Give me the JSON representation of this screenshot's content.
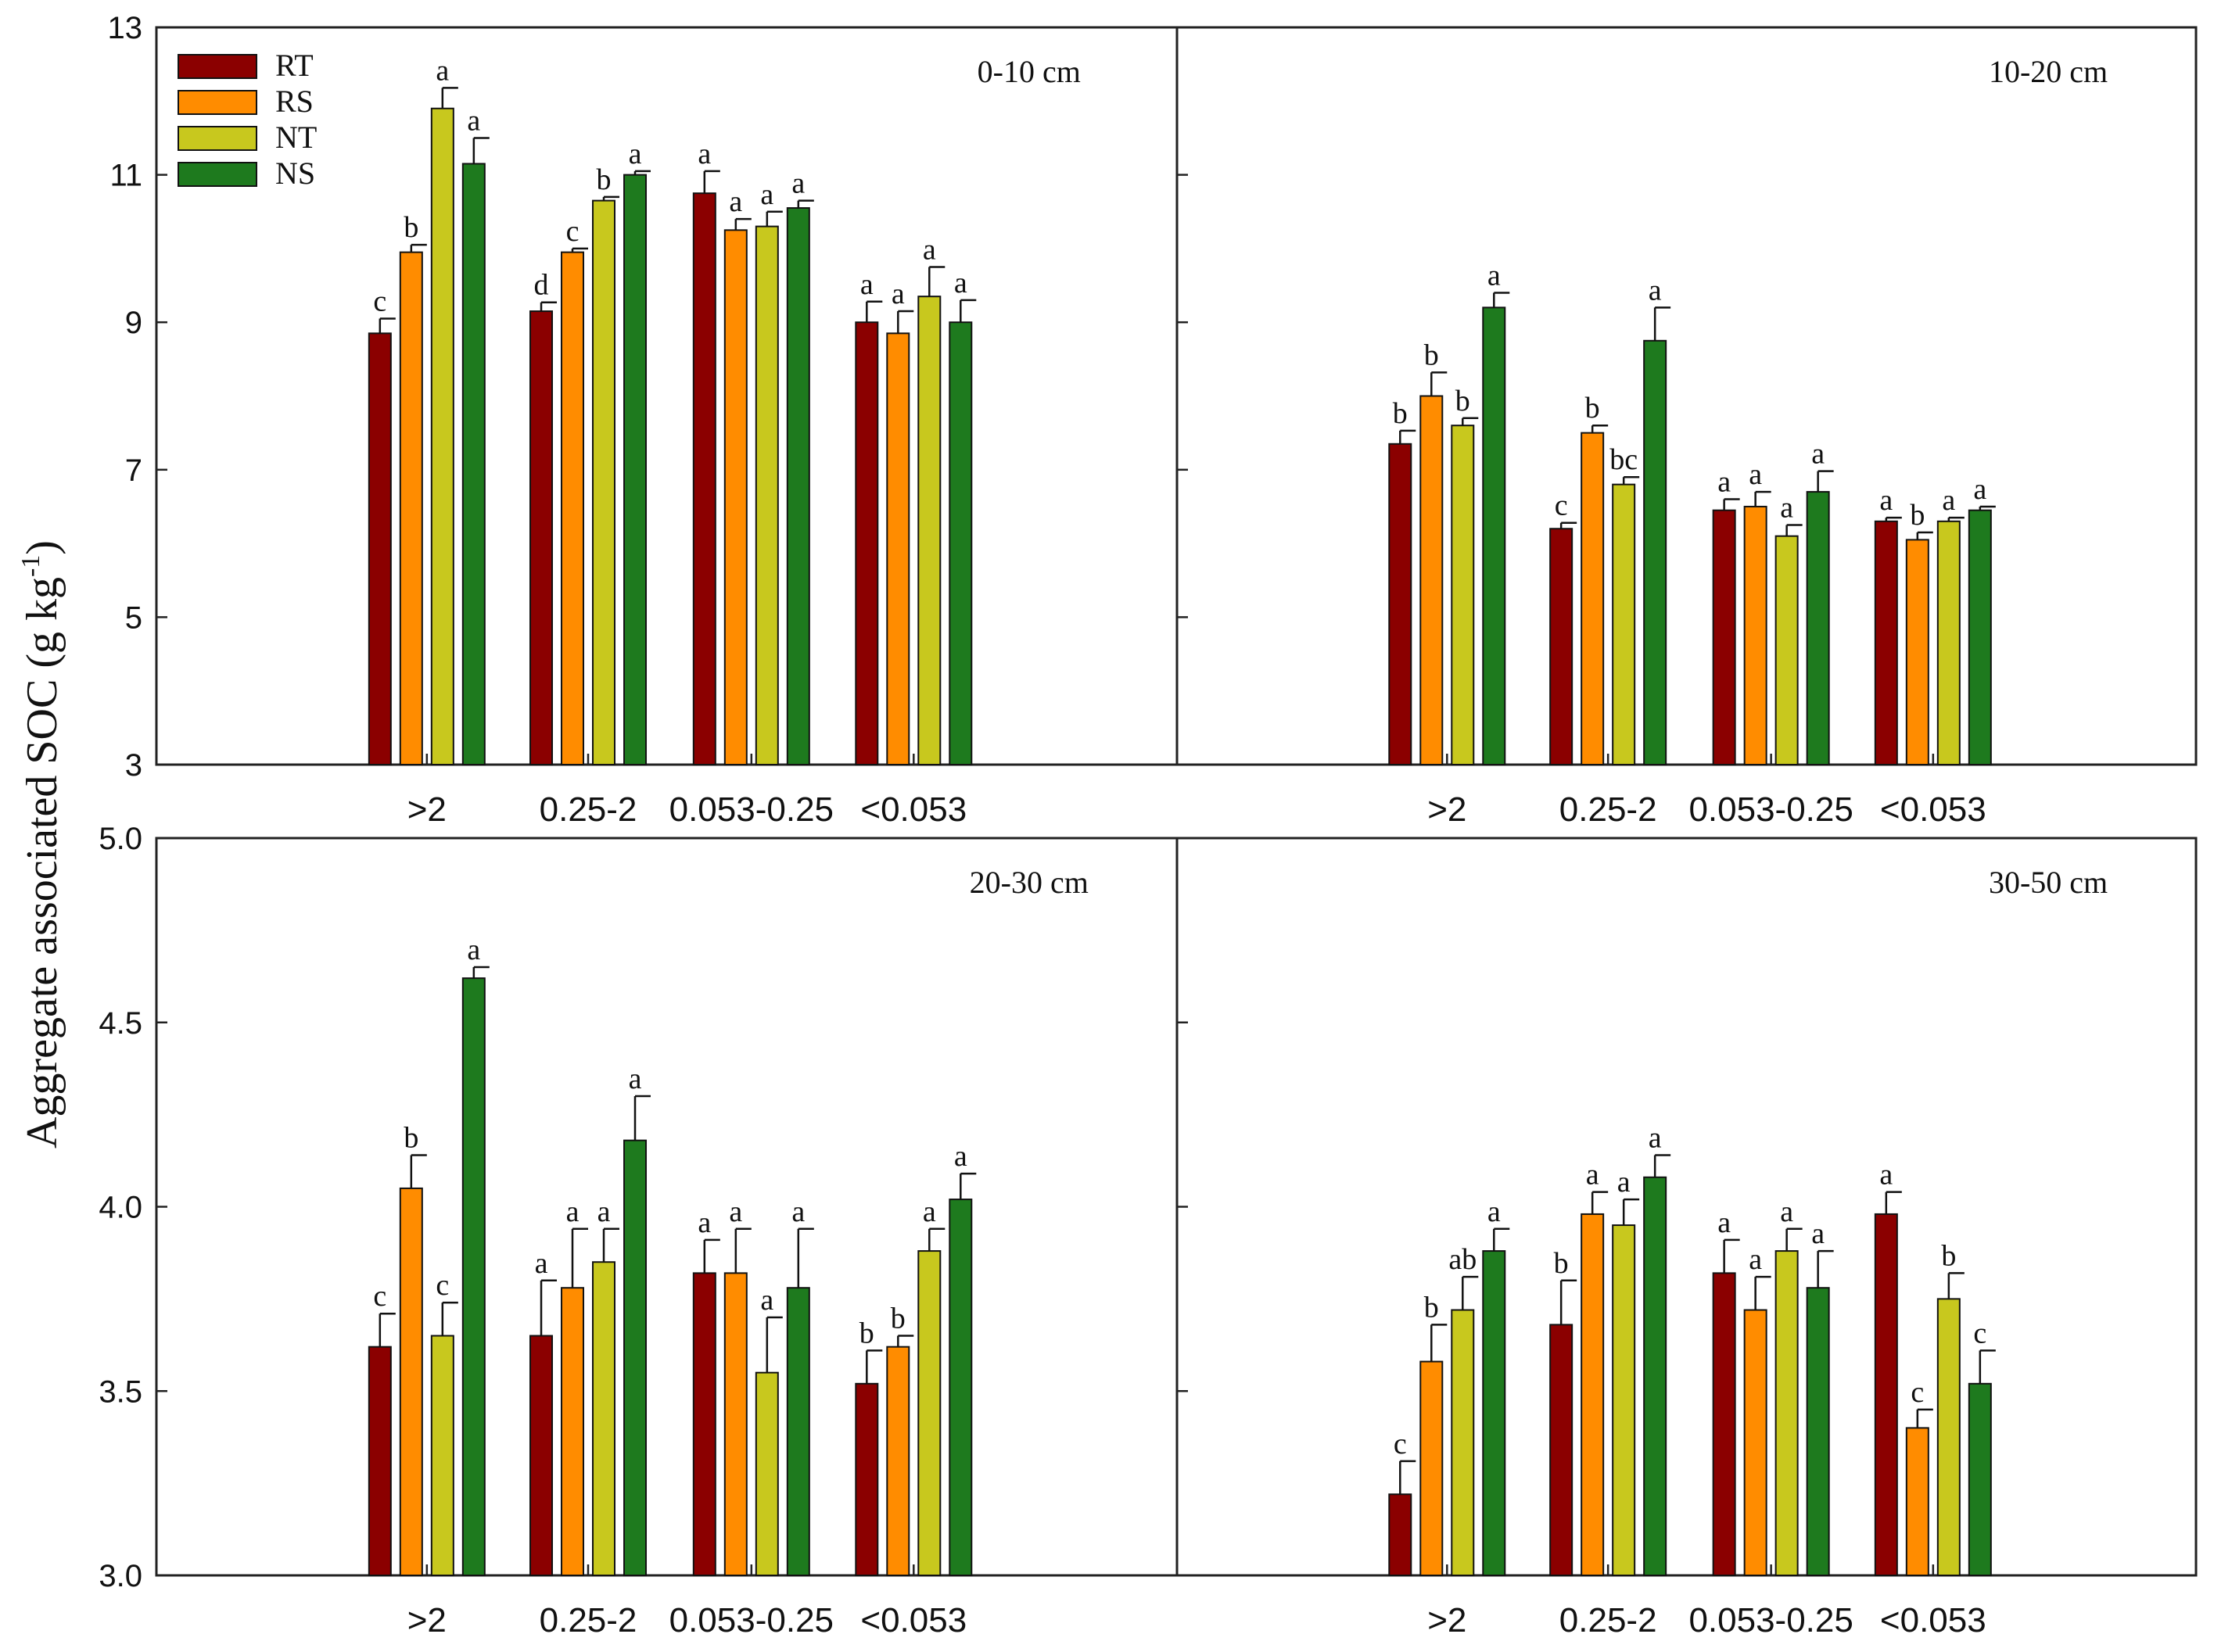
{
  "chart_data": {
    "type": "bar",
    "ylabel_main": "Aggregate associated SOC (g kg",
    "ylabel_sup": "-1",
    "ylabel_end": ")",
    "legend": [
      {
        "name": "RT",
        "color": "#8B0000"
      },
      {
        "name": "RS",
        "color": "#FF8C00"
      },
      {
        "name": "NT",
        "color": "#C8C81E"
      },
      {
        "name": "NS",
        "color": "#1E7A1E"
      }
    ],
    "categories": [
      ">2",
      "0.25-2",
      "0.053-0.25",
      "<0.053"
    ],
    "panels": [
      {
        "title": "0-10 cm",
        "ylim": [
          3,
          13
        ],
        "ticks": [
          "3",
          "5",
          "7",
          "9",
          "11",
          "13"
        ],
        "tick_values": [
          3,
          5,
          7,
          9,
          11,
          13
        ],
        "series": [
          {
            "name": "RT",
            "values": [
              8.85,
              9.15,
              10.75,
              9.0
            ],
            "errors": [
              0.2,
              0.12,
              0.3,
              0.28
            ],
            "letters": [
              "c",
              "d",
              "a",
              "a"
            ]
          },
          {
            "name": "RS",
            "values": [
              9.95,
              9.95,
              10.25,
              8.85
            ],
            "errors": [
              0.1,
              0.05,
              0.15,
              0.3
            ],
            "letters": [
              "b",
              "c",
              "a",
              "a"
            ]
          },
          {
            "name": "NT",
            "values": [
              11.9,
              10.65,
              10.3,
              9.35
            ],
            "errors": [
              0.28,
              0.05,
              0.2,
              0.4
            ],
            "letters": [
              "a",
              "b",
              "a",
              "a"
            ]
          },
          {
            "name": "NS",
            "values": [
              11.15,
              11.0,
              10.55,
              9.0
            ],
            "errors": [
              0.35,
              0.05,
              0.1,
              0.3
            ],
            "letters": [
              "a",
              "a",
              "a",
              "a"
            ]
          }
        ]
      },
      {
        "title": "10-20 cm",
        "ylim": [
          3,
          13
        ],
        "ticks": [],
        "tick_values": [
          3,
          5,
          7,
          9,
          11,
          13
        ],
        "series": [
          {
            "name": "RT",
            "values": [
              7.35,
              6.2,
              6.45,
              6.3
            ],
            "errors": [
              0.18,
              0.08,
              0.15,
              0.05
            ],
            "letters": [
              "b",
              "c",
              "a",
              "a"
            ]
          },
          {
            "name": "RS",
            "values": [
              8.0,
              7.5,
              6.5,
              6.05
            ],
            "errors": [
              0.32,
              0.1,
              0.2,
              0.1
            ],
            "letters": [
              "b",
              "b",
              "a",
              "b"
            ]
          },
          {
            "name": "NT",
            "values": [
              7.6,
              6.8,
              6.1,
              6.3
            ],
            "errors": [
              0.1,
              0.1,
              0.15,
              0.05
            ],
            "letters": [
              "b",
              "bc",
              "a",
              "a"
            ]
          },
          {
            "name": "NS",
            "values": [
              9.2,
              8.75,
              6.7,
              6.45
            ],
            "errors": [
              0.2,
              0.45,
              0.28,
              0.05
            ],
            "letters": [
              "a",
              "a",
              "a",
              "a"
            ]
          }
        ]
      },
      {
        "title": "20-30 cm",
        "ylim": [
          3.0,
          5.0
        ],
        "ticks": [
          "3.0",
          "3.5",
          "4.0",
          "4.5",
          "5.0"
        ],
        "tick_values": [
          3.0,
          3.5,
          4.0,
          4.5,
          5.0
        ],
        "series": [
          {
            "name": "RT",
            "values": [
              3.62,
              3.65,
              3.82,
              3.52
            ],
            "errors": [
              0.09,
              0.15,
              0.09,
              0.09
            ],
            "letters": [
              "c",
              "a",
              "a",
              "b"
            ]
          },
          {
            "name": "RS",
            "values": [
              4.05,
              3.78,
              3.82,
              3.62
            ],
            "errors": [
              0.09,
              0.16,
              0.12,
              0.03
            ],
            "letters": [
              "b",
              "a",
              "a",
              "b"
            ]
          },
          {
            "name": "NT",
            "values": [
              3.65,
              3.85,
              3.55,
              3.88
            ],
            "errors": [
              0.09,
              0.09,
              0.15,
              0.06
            ],
            "letters": [
              "c",
              "a",
              "a",
              "a"
            ]
          },
          {
            "name": "NS",
            "values": [
              4.62,
              4.18,
              3.78,
              4.02
            ],
            "errors": [
              0.03,
              0.12,
              0.16,
              0.07
            ],
            "letters": [
              "a",
              "a",
              "a",
              "a"
            ]
          }
        ]
      },
      {
        "title": "30-50 cm",
        "ylim": [
          3.0,
          5.0
        ],
        "ticks": [],
        "tick_values": [
          3.0,
          3.5,
          4.0,
          4.5,
          5.0
        ],
        "series": [
          {
            "name": "RT",
            "values": [
              3.22,
              3.68,
              3.82,
              3.98
            ],
            "errors": [
              0.09,
              0.12,
              0.09,
              0.06
            ],
            "letters": [
              "c",
              "b",
              "a",
              "a"
            ]
          },
          {
            "name": "RS",
            "values": [
              3.58,
              3.98,
              3.72,
              3.4
            ],
            "errors": [
              0.1,
              0.06,
              0.09,
              0.05
            ],
            "letters": [
              "b",
              "a",
              "a",
              "c"
            ]
          },
          {
            "name": "NT",
            "values": [
              3.72,
              3.95,
              3.88,
              3.75
            ],
            "errors": [
              0.09,
              0.07,
              0.06,
              0.07
            ],
            "letters": [
              "ab",
              "a",
              "a",
              "b"
            ]
          },
          {
            "name": "NS",
            "values": [
              3.88,
              4.08,
              3.78,
              3.52
            ],
            "errors": [
              0.06,
              0.06,
              0.1,
              0.09
            ],
            "letters": [
              "a",
              "a",
              "a",
              "c"
            ]
          }
        ]
      }
    ]
  }
}
